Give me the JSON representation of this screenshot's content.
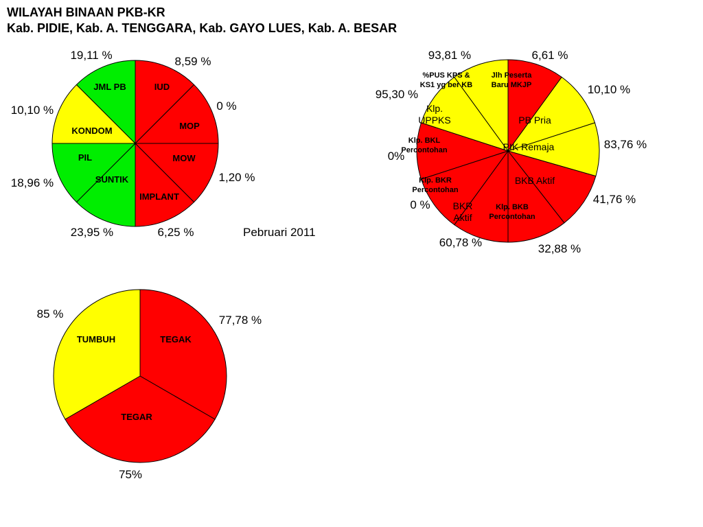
{
  "title_line1": "WILAYAH BINAAN PKB-KR",
  "title_line2": "Kab. PIDIE, Kab. A. TENGGARA, Kab. GAYO LUES, Kab. A. BESAR",
  "date_label": "Pebruari  2011",
  "colors": {
    "red": "#ff0000",
    "green": "#00ee00",
    "yellow": "#ffff00",
    "outline": "#000000"
  },
  "chart_data": [
    {
      "type": "pie",
      "slices": [
        {
          "name": "IUD",
          "color": "red"
        },
        {
          "name": "MOP",
          "color": "red"
        },
        {
          "name": "MOW",
          "color": "red"
        },
        {
          "name": "IMPLANT",
          "color": "red"
        },
        {
          "name": "SUNTIK",
          "color": "green"
        },
        {
          "name": "PIL",
          "color": "green"
        },
        {
          "name": "KONDOM",
          "color": "yellow"
        },
        {
          "name": "JML PB",
          "color": "green"
        }
      ],
      "values": [
        "8,59 %",
        "0 %",
        "1,20 %",
        "6,25 %",
        "23,95 %",
        "18,96 %",
        "10,10 %",
        "19,11 %"
      ]
    },
    {
      "type": "pie",
      "slices": [
        {
          "name_lines": [
            "Jlh Peserta",
            "Baru MKJP"
          ],
          "color": "red"
        },
        {
          "name_lines": [
            "PB Pria"
          ],
          "color": "yellow"
        },
        {
          "name_lines": [
            "PIK Remaja"
          ],
          "color": "yellow"
        },
        {
          "name_lines": [
            "BKB Aktif"
          ],
          "color": "red"
        },
        {
          "name_lines": [
            "Klp. BKB",
            "Percontohan"
          ],
          "color": "red"
        },
        {
          "name_lines": [
            "BKR",
            "Aktif"
          ],
          "color": "red"
        },
        {
          "name_lines": [
            "Klp. BKR",
            "Percontohan"
          ],
          "color": "red"
        },
        {
          "name_lines": [
            "Klp. BKL",
            "Percontohan"
          ],
          "color": "red"
        },
        {
          "name_lines": [
            "Klp.",
            "UPPKS"
          ],
          "color": "yellow"
        },
        {
          "name_lines": [
            "%PUS KPS &",
            "KS1 yg ber KB"
          ],
          "color": "yellow"
        }
      ],
      "values": [
        "6,61 %",
        "10,10 %",
        "83,76 %",
        "41,76 %",
        "32,88 %",
        "60,78 %",
        "0 %",
        "0%",
        "95,30 %",
        "93,81 %"
      ]
    },
    {
      "type": "pie",
      "slices": [
        {
          "name": "TEGAK",
          "color": "red"
        },
        {
          "name": "TEGAR",
          "color": "red"
        },
        {
          "name": "TUMBUH",
          "color": "yellow"
        }
      ],
      "values": [
        "77,78 %",
        "75%",
        "85 %"
      ]
    }
  ]
}
